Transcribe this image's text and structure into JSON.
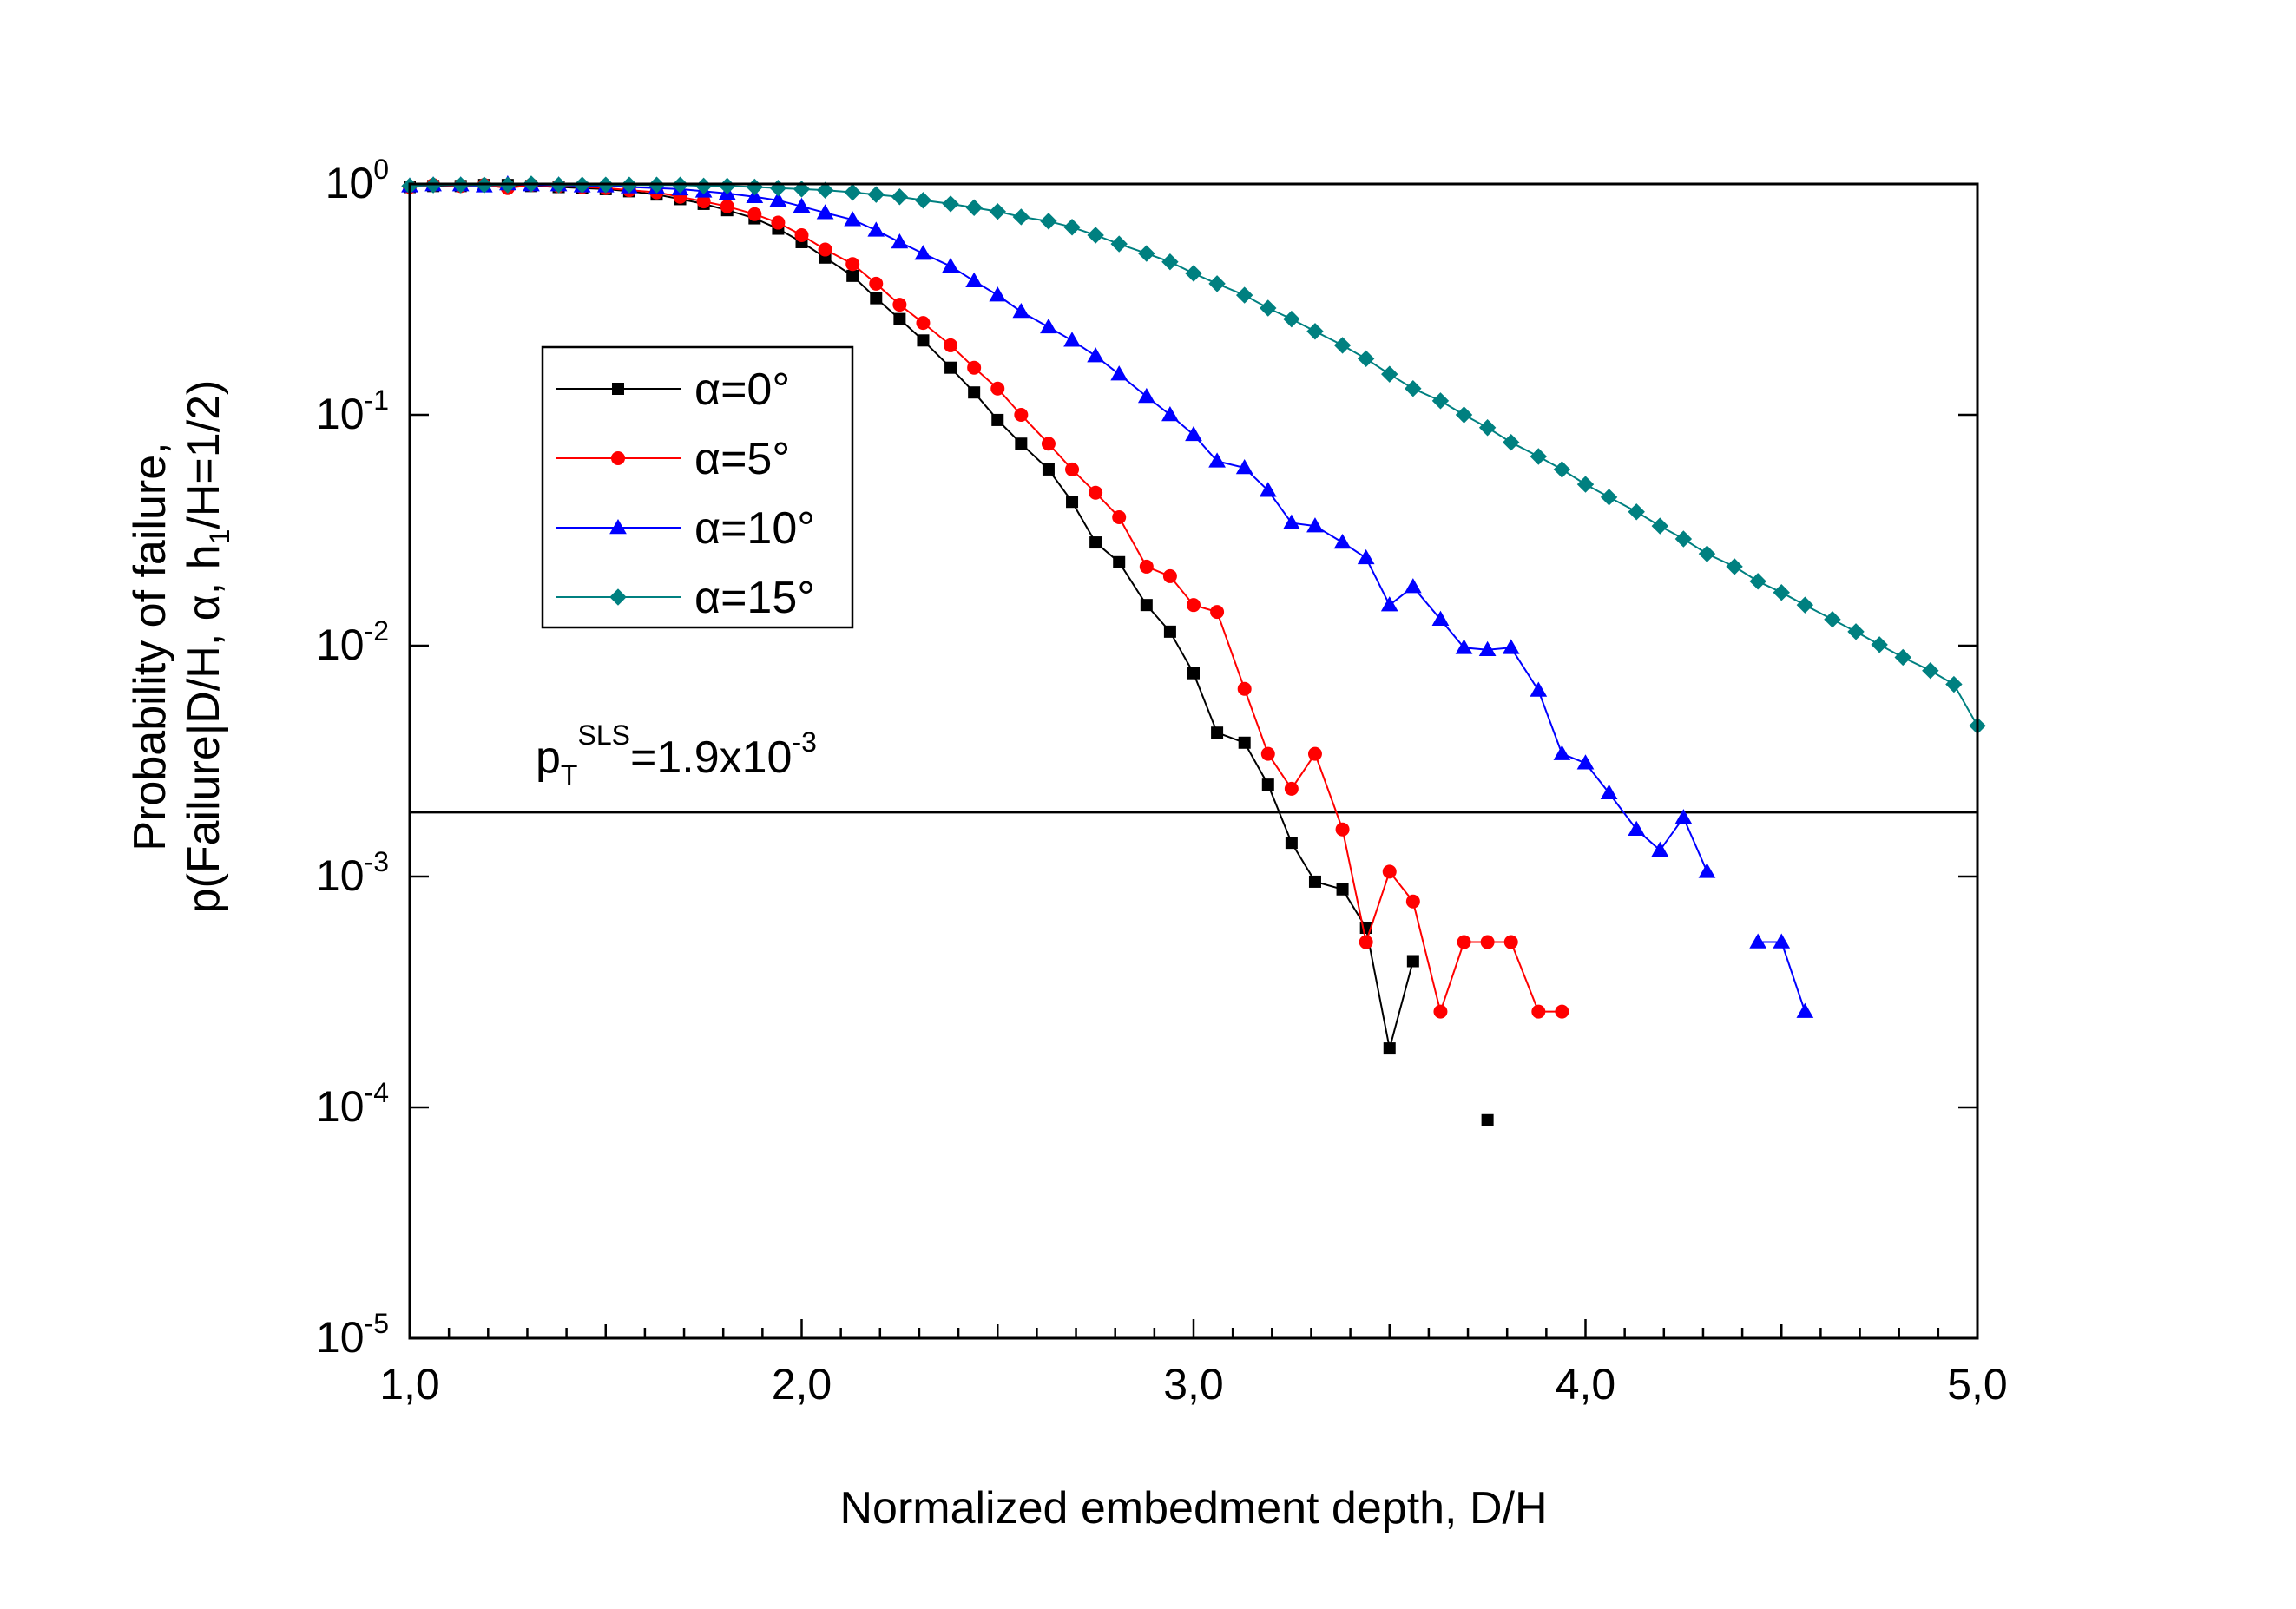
{
  "chart_data": {
    "type": "line",
    "xlabel": "Normalized embedment depth, D/H",
    "ylabel_line1": "Probability of failure,",
    "ylabel_line2_parts": [
      "p(Failure|D/H, α, h",
      "1",
      "/H=1/2)"
    ],
    "xlim": [
      1.0,
      5.0
    ],
    "ylim": [
      1e-05,
      1
    ],
    "yscale": "log",
    "xticks": [
      1.0,
      2.0,
      3.0,
      4.0,
      5.0
    ],
    "xtick_labels": [
      "1,0",
      "2,0",
      "3,0",
      "4,0",
      "5,0"
    ],
    "yticks": [
      {
        "value": 1,
        "base": "10",
        "exp": "0"
      },
      {
        "value": 0.1,
        "base": "10",
        "exp": "-1"
      },
      {
        "value": 0.01,
        "base": "10",
        "exp": "-2"
      },
      {
        "value": 0.001,
        "base": "10",
        "exp": "-3"
      },
      {
        "value": 0.0001,
        "base": "10",
        "exp": "-4"
      },
      {
        "value": 1e-05,
        "base": "10",
        "exp": "-5"
      }
    ],
    "legend_position": "upper-left",
    "series": [
      {
        "name": "α=0°",
        "color": "#000000",
        "marker": "square",
        "segments": [
          [
            [
              1.0,
              0.97
            ],
            [
              1.06,
              0.98
            ],
            [
              1.13,
              0.98
            ],
            [
              1.19,
              0.99
            ],
            [
              1.25,
              0.99
            ],
            [
              1.31,
              0.98
            ],
            [
              1.38,
              0.97
            ],
            [
              1.44,
              0.96
            ],
            [
              1.5,
              0.95
            ],
            [
              1.56,
              0.93
            ],
            [
              1.63,
              0.9
            ],
            [
              1.69,
              0.86
            ],
            [
              1.75,
              0.82
            ],
            [
              1.81,
              0.77
            ],
            [
              1.88,
              0.71
            ],
            [
              1.94,
              0.64
            ],
            [
              2.0,
              0.56
            ],
            [
              2.06,
              0.48
            ],
            [
              2.13,
              0.4
            ],
            [
              2.19,
              0.32
            ],
            [
              2.25,
              0.26
            ],
            [
              2.31,
              0.21
            ],
            [
              2.38,
              0.16
            ],
            [
              2.44,
              0.125
            ],
            [
              2.5,
              0.095
            ],
            [
              2.56,
              0.075
            ],
            [
              2.63,
              0.058
            ],
            [
              2.69,
              0.042
            ],
            [
              2.75,
              0.028
            ],
            [
              2.81,
              0.023
            ],
            [
              2.88,
              0.015
            ],
            [
              2.94,
              0.0115
            ],
            [
              3.0,
              0.0076
            ],
            [
              3.06,
              0.0042
            ],
            [
              3.13,
              0.0038
            ],
            [
              3.19,
              0.0025
            ],
            [
              3.25,
              0.0014
            ],
            [
              3.31,
              0.00095
            ],
            [
              3.38,
              0.00088
            ],
            [
              3.44,
              0.0006
            ],
            [
              3.5,
              0.00018
            ],
            [
              3.56,
              0.00043
            ]
          ],
          [
            [
              3.75,
              8.8e-05
            ]
          ]
        ]
      },
      {
        "name": "α=5°",
        "color": "#ff0000",
        "marker": "circle",
        "segments": [
          [
            [
              1.0,
              0.97
            ],
            [
              1.06,
              0.99
            ],
            [
              1.13,
              0.98
            ],
            [
              1.19,
              0.99
            ],
            [
              1.25,
              0.96
            ],
            [
              1.31,
              0.99
            ],
            [
              1.38,
              0.98
            ],
            [
              1.44,
              0.97
            ],
            [
              1.5,
              0.96
            ],
            [
              1.56,
              0.94
            ],
            [
              1.63,
              0.92
            ],
            [
              1.69,
              0.88
            ],
            [
              1.75,
              0.84
            ],
            [
              1.81,
              0.8
            ],
            [
              1.88,
              0.74
            ],
            [
              1.94,
              0.68
            ],
            [
              2.0,
              0.6
            ],
            [
              2.06,
              0.52
            ],
            [
              2.13,
              0.45
            ],
            [
              2.19,
              0.37
            ],
            [
              2.25,
              0.3
            ],
            [
              2.31,
              0.25
            ],
            [
              2.38,
              0.2
            ],
            [
              2.44,
              0.16
            ],
            [
              2.5,
              0.13
            ],
            [
              2.56,
              0.1
            ],
            [
              2.63,
              0.075
            ],
            [
              2.69,
              0.058
            ],
            [
              2.75,
              0.046
            ],
            [
              2.81,
              0.036
            ],
            [
              2.88,
              0.022
            ],
            [
              2.94,
              0.02
            ],
            [
              3.0,
              0.015
            ],
            [
              3.06,
              0.014
            ],
            [
              3.13,
              0.0065
            ],
            [
              3.19,
              0.0034
            ],
            [
              3.25,
              0.0024
            ],
            [
              3.31,
              0.0034
            ],
            [
              3.38,
              0.0016
            ],
            [
              3.44,
              0.00052
            ],
            [
              3.5,
              0.00105
            ],
            [
              3.56,
              0.00078
            ],
            [
              3.63,
              0.00026
            ],
            [
              3.69,
              0.00052
            ],
            [
              3.75,
              0.00052
            ],
            [
              3.81,
              0.00052
            ],
            [
              3.88,
              0.00026
            ],
            [
              3.94,
              0.00026
            ]
          ]
        ]
      },
      {
        "name": "α=10°",
        "color": "#0000ff",
        "marker": "triangle",
        "segments": [
          [
            [
              1.0,
              0.98
            ],
            [
              1.06,
              0.99
            ],
            [
              1.13,
              0.99
            ],
            [
              1.19,
              0.98
            ],
            [
              1.25,
              1.0
            ],
            [
              1.31,
              0.99
            ],
            [
              1.38,
              0.99
            ],
            [
              1.44,
              0.98
            ],
            [
              1.5,
              0.98
            ],
            [
              1.56,
              0.97
            ],
            [
              1.63,
              0.96
            ],
            [
              1.69,
              0.95
            ],
            [
              1.75,
              0.93
            ],
            [
              1.81,
              0.91
            ],
            [
              1.88,
              0.88
            ],
            [
              1.94,
              0.85
            ],
            [
              2.0,
              0.8
            ],
            [
              2.06,
              0.75
            ],
            [
              2.13,
              0.7
            ],
            [
              2.19,
              0.63
            ],
            [
              2.25,
              0.56
            ],
            [
              2.31,
              0.5
            ],
            [
              2.38,
              0.44
            ],
            [
              2.44,
              0.38
            ],
            [
              2.5,
              0.33
            ],
            [
              2.56,
              0.28
            ],
            [
              2.63,
              0.24
            ],
            [
              2.69,
              0.21
            ],
            [
              2.75,
              0.18
            ],
            [
              2.81,
              0.15
            ],
            [
              2.88,
              0.12
            ],
            [
              2.94,
              0.1
            ],
            [
              3.0,
              0.082
            ],
            [
              3.06,
              0.063
            ],
            [
              3.13,
              0.059
            ],
            [
              3.19,
              0.047
            ],
            [
              3.25,
              0.034
            ],
            [
              3.31,
              0.033
            ],
            [
              3.38,
              0.028
            ],
            [
              3.44,
              0.024
            ],
            [
              3.5,
              0.015
            ],
            [
              3.56,
              0.018
            ],
            [
              3.63,
              0.013
            ],
            [
              3.69,
              0.0098
            ],
            [
              3.75,
              0.0096
            ],
            [
              3.81,
              0.0098
            ],
            [
              3.88,
              0.0064
            ],
            [
              3.94,
              0.0034
            ],
            [
              4.0,
              0.0031
            ],
            [
              4.06,
              0.0023
            ],
            [
              4.13,
              0.0016
            ],
            [
              4.19,
              0.0013
            ],
            [
              4.25,
              0.0018
            ],
            [
              4.31,
              0.00105
            ]
          ],
          [
            [
              4.44,
              0.00052
            ],
            [
              4.5,
              0.00052
            ],
            [
              4.56,
              0.00026
            ]
          ]
        ]
      },
      {
        "name": "α=15°",
        "color": "#008080",
        "marker": "diamond",
        "segments": [
          [
            [
              1.0,
              0.98
            ],
            [
              1.06,
              0.99
            ],
            [
              1.13,
              0.99
            ],
            [
              1.19,
              0.99
            ],
            [
              1.25,
              0.99
            ],
            [
              1.31,
              1.0
            ],
            [
              1.38,
              0.99
            ],
            [
              1.44,
              0.99
            ],
            [
              1.5,
              0.99
            ],
            [
              1.56,
              0.99
            ],
            [
              1.63,
              0.99
            ],
            [
              1.69,
              0.99
            ],
            [
              1.75,
              0.98
            ],
            [
              1.81,
              0.98
            ],
            [
              1.88,
              0.97
            ],
            [
              1.94,
              0.96
            ],
            [
              2.0,
              0.95
            ],
            [
              2.06,
              0.94
            ],
            [
              2.13,
              0.92
            ],
            [
              2.19,
              0.9
            ],
            [
              2.25,
              0.88
            ],
            [
              2.31,
              0.85
            ],
            [
              2.38,
              0.82
            ],
            [
              2.44,
              0.79
            ],
            [
              2.5,
              0.76
            ],
            [
              2.56,
              0.72
            ],
            [
              2.63,
              0.69
            ],
            [
              2.69,
              0.65
            ],
            [
              2.75,
              0.6
            ],
            [
              2.81,
              0.55
            ],
            [
              2.88,
              0.5
            ],
            [
              2.94,
              0.46
            ],
            [
              3.0,
              0.41
            ],
            [
              3.06,
              0.37
            ],
            [
              3.13,
              0.33
            ],
            [
              3.19,
              0.29
            ],
            [
              3.25,
              0.26
            ],
            [
              3.31,
              0.23
            ],
            [
              3.38,
              0.2
            ],
            [
              3.44,
              0.175
            ],
            [
              3.5,
              0.15
            ],
            [
              3.56,
              0.13
            ],
            [
              3.63,
              0.115
            ],
            [
              3.69,
              0.1
            ],
            [
              3.75,
              0.088
            ],
            [
              3.81,
              0.076
            ],
            [
              3.88,
              0.066
            ],
            [
              3.94,
              0.058
            ],
            [
              4.0,
              0.05
            ],
            [
              4.06,
              0.044
            ],
            [
              4.13,
              0.038
            ],
            [
              4.19,
              0.033
            ],
            [
              4.25,
              0.029
            ],
            [
              4.31,
              0.025
            ],
            [
              4.38,
              0.022
            ],
            [
              4.44,
              0.019
            ],
            [
              4.5,
              0.017
            ],
            [
              4.56,
              0.015
            ],
            [
              4.63,
              0.013
            ],
            [
              4.69,
              0.0115
            ],
            [
              4.75,
              0.0101
            ],
            [
              4.81,
              0.0089
            ],
            [
              4.88,
              0.0078
            ],
            [
              4.94,
              0.0068
            ],
            [
              5.0,
              0.0045
            ]
          ]
        ]
      }
    ],
    "reference_line": {
      "value": 0.0019,
      "label_parts": [
        "p",
        "T",
        "SLS",
        "=1.9x10",
        "-3"
      ]
    }
  }
}
